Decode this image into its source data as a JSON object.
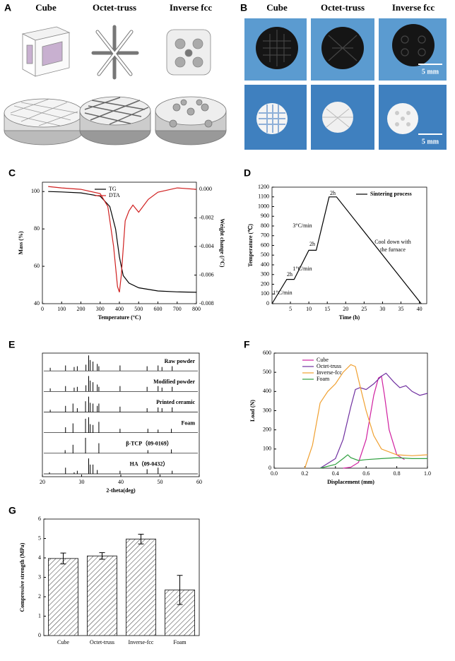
{
  "panel_a": {
    "label": "A",
    "columns": [
      "Cube",
      "Octet-truss",
      "Inverse fcc"
    ]
  },
  "panel_b": {
    "label": "B",
    "columns": [
      "Cube",
      "Octet-truss",
      "Inverse fcc"
    ],
    "scale_bars": [
      "5 mm",
      "5 mm"
    ]
  },
  "chart_data": [
    {
      "label": "C",
      "type": "line",
      "xlabel": "Temperature (°C)",
      "ylabel": "Mass (%)",
      "y2label": "Weight change (/°C)",
      "xlim": [
        0,
        800
      ],
      "xticks": [
        0,
        100,
        200,
        300,
        400,
        500,
        600,
        700,
        800
      ],
      "ylim": [
        40,
        105
      ],
      "yticks": [
        40,
        60,
        80,
        100
      ],
      "y2lim": [
        -0.008,
        0.0005
      ],
      "y2ticks": [
        {
          "value": 0,
          "label": "0.000"
        },
        -0.002,
        -0.004,
        -0.006,
        -0.008
      ],
      "legend": "upper center",
      "series": [
        {
          "name": "TG",
          "color": "#000000",
          "x": [
            30,
            100,
            200,
            300,
            350,
            380,
            400,
            420,
            450,
            500,
            600,
            700,
            800
          ],
          "values": [
            100,
            99.8,
            99.3,
            97.5,
            92,
            80,
            65,
            55,
            51,
            48.5,
            46.8,
            46.3,
            46.1
          ]
        },
        {
          "name": "DTA",
          "color": "#d02020",
          "axis": "y2",
          "x": [
            30,
            100,
            200,
            300,
            340,
            370,
            390,
            400,
            410,
            430,
            450,
            470,
            500,
            550,
            600,
            700,
            800
          ],
          "values": [
            0.0002,
            0.0001,
            0,
            -0.0003,
            -0.0012,
            -0.004,
            -0.0068,
            -0.0072,
            -0.006,
            -0.0022,
            -0.0015,
            -0.0011,
            -0.0016,
            -0.0007,
            -0.0002,
            0.0001,
            0
          ]
        }
      ]
    },
    {
      "label": "D",
      "type": "line",
      "xlabel": "Time (h)",
      "ylabel": "Temperature (℃)",
      "xlim": [
        0,
        42
      ],
      "xticks": [
        5,
        10,
        15,
        20,
        25,
        30,
        35,
        40
      ],
      "ylim": [
        0,
        1200
      ],
      "yticks": [
        0,
        100,
        200,
        300,
        400,
        500,
        600,
        700,
        800,
        900,
        1000,
        1100,
        1200
      ],
      "legend": "upper right",
      "annotations": [
        "1°C/min",
        "2h",
        "1°C/min",
        "2h",
        "3°C/min",
        "2h",
        "Cool down with",
        "the furnace"
      ],
      "series": [
        {
          "name": "Sintering process",
          "color": "#000000",
          "x": [
            0,
            4,
            6,
            10,
            12,
            15.5,
            17.5,
            40.5
          ],
          "values": [
            0,
            250,
            250,
            550,
            550,
            1100,
            1100,
            0
          ]
        }
      ]
    },
    {
      "label": "E",
      "type": "stem",
      "xlabel": "2-theta(deg)",
      "xlim": [
        20,
        60
      ],
      "xticks": [
        20,
        30,
        40,
        50,
        60
      ],
      "series": [
        {
          "name": "Raw powder",
          "color": "#000000",
          "x": [
            22,
            25.9,
            28.1,
            28.9,
            31.1,
            31.8,
            32.2,
            32.9,
            34.0,
            34.4,
            39.8,
            46.7,
            49.5,
            50.5,
            53.1
          ],
          "values": [
            20,
            35,
            25,
            30,
            40,
            100,
            70,
            60,
            45,
            30,
            35,
            30,
            35,
            25,
            30
          ]
        },
        {
          "name": "Modified powder",
          "color": "#000000",
          "x": [
            22,
            25.9,
            28.1,
            28.9,
            31.1,
            31.8,
            32.2,
            32.9,
            34.0,
            34.4,
            39.8,
            46.7,
            49.5,
            50.5,
            53.1
          ],
          "values": [
            20,
            35,
            25,
            30,
            40,
            100,
            70,
            60,
            45,
            30,
            35,
            30,
            35,
            25,
            30
          ]
        },
        {
          "name": "Printed ceramic",
          "color": "#000000",
          "x": [
            22,
            25.9,
            27.8,
            28.9,
            31.0,
            31.8,
            32.2,
            32.9,
            34.0,
            34.4,
            39.8,
            46.7,
            49.5,
            50.5,
            53.1
          ],
          "values": [
            15,
            40,
            55,
            25,
            70,
            100,
            60,
            55,
            40,
            55,
            35,
            25,
            30,
            25,
            30
          ]
        },
        {
          "name": "Foam",
          "color": "#000000",
          "x": [
            25.9,
            27.8,
            31.0,
            31.8,
            32.2,
            32.9,
            34.4,
            39.8,
            46.9,
            49.5,
            52.9
          ],
          "values": [
            35,
            60,
            90,
            100,
            55,
            50,
            70,
            25,
            25,
            20,
            25
          ]
        },
        {
          "name": "β-TCP（09-0169）",
          "color": "#000000",
          "x": [
            25.8,
            27.8,
            31.0,
            34.4,
            46.9,
            52.9
          ],
          "values": [
            20,
            55,
            100,
            65,
            20,
            25
          ]
        },
        {
          "name": "HA（09-0432）",
          "color": "#000000",
          "x": [
            21.8,
            25.9,
            28.1,
            28.9,
            31.8,
            32.2,
            32.9,
            34.0,
            39.8,
            46.7,
            49.5,
            53.1
          ],
          "values": [
            10,
            40,
            10,
            20,
            100,
            60,
            60,
            25,
            20,
            30,
            40,
            20
          ]
        }
      ]
    },
    {
      "label": "F",
      "type": "line",
      "xlabel": "Displacement (mm)",
      "ylabel": "Load (N)",
      "xlim": [
        0,
        1.0
      ],
      "xticks": [
        {
          "value": 0,
          "label": "0.0"
        },
        0.2,
        0.4,
        0.6,
        0.8,
        {
          "value": 1,
          "label": "1.0"
        }
      ],
      "ylim": [
        0,
        600
      ],
      "yticks": [
        0,
        100,
        200,
        300,
        400,
        500,
        600
      ],
      "legend": "upper left",
      "series": [
        {
          "name": "Cube",
          "color": "#d020a0",
          "x": [
            0.45,
            0.5,
            0.55,
            0.6,
            0.65,
            0.68,
            0.7,
            0.72,
            0.75,
            0.8,
            0.85
          ],
          "values": [
            0,
            5,
            30,
            150,
            380,
            470,
            480,
            380,
            200,
            70,
            45
          ]
        },
        {
          "name": "Octet-truss",
          "color": "#7030a0",
          "x": [
            0.3,
            0.4,
            0.45,
            0.5,
            0.53,
            0.56,
            0.6,
            0.65,
            0.7,
            0.73,
            0.78,
            0.82,
            0.86,
            0.9,
            0.95,
            1.0
          ],
          "values": [
            0,
            50,
            150,
            320,
            410,
            420,
            410,
            440,
            480,
            495,
            450,
            420,
            430,
            400,
            380,
            390
          ]
        },
        {
          "name": "Inverse-fcc",
          "color": "#f0a030",
          "x": [
            0.2,
            0.25,
            0.3,
            0.35,
            0.4,
            0.45,
            0.5,
            0.53,
            0.56,
            0.6,
            0.65,
            0.7,
            0.8,
            0.9,
            1.0
          ],
          "values": [
            0,
            120,
            340,
            400,
            440,
            500,
            540,
            530,
            430,
            300,
            170,
            100,
            70,
            65,
            70
          ]
        },
        {
          "name": "Foam",
          "color": "#30a040",
          "x": [
            0.3,
            0.4,
            0.45,
            0.48,
            0.5,
            0.55,
            0.6,
            0.7,
            0.8,
            0.9,
            1.0
          ],
          "values": [
            0,
            20,
            50,
            70,
            55,
            40,
            45,
            50,
            55,
            50,
            50
          ]
        }
      ]
    },
    {
      "label": "G",
      "type": "bar",
      "ylabel": "Compressive strength (MPa)",
      "color": "#333333",
      "categories": [
        "Cube",
        "Octet-truss",
        "Inverse-fcc",
        "Foam"
      ],
      "values": [
        3.97,
        4.1,
        4.97,
        2.35
      ],
      "errors": [
        0.28,
        0.17,
        0.25,
        0.75
      ],
      "ylim": [
        0,
        6
      ],
      "yticks": [
        0,
        1,
        2,
        3,
        4,
        5,
        6
      ]
    }
  ]
}
